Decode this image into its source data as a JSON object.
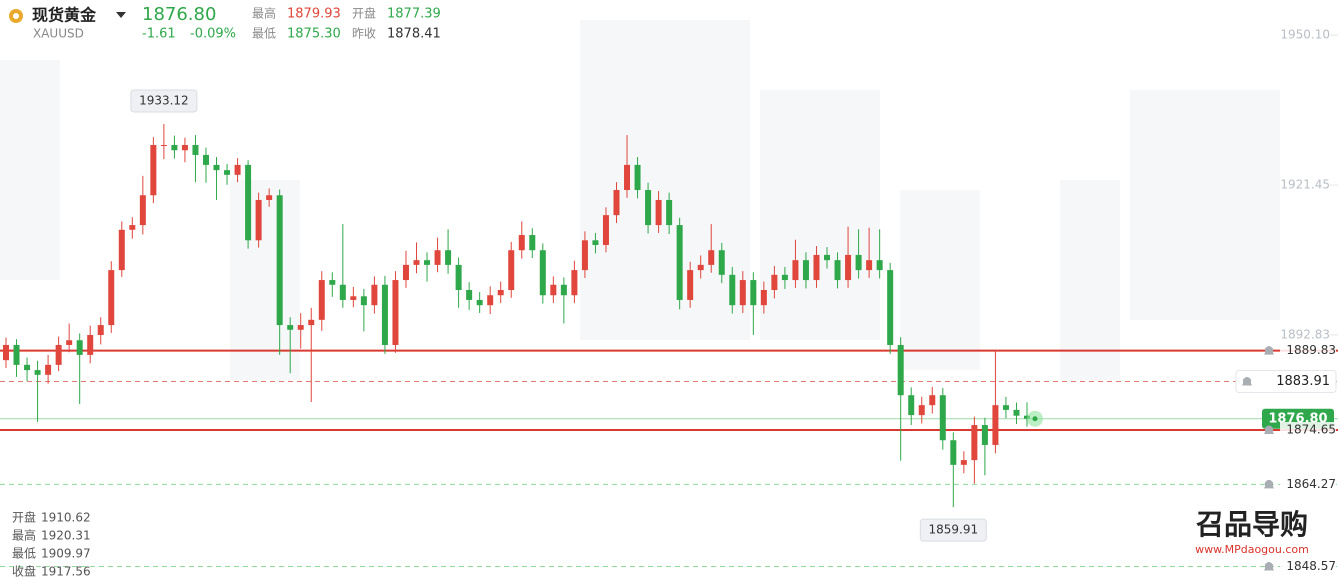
{
  "header": {
    "name": "现货黄金",
    "symbol": "XAUUSD",
    "price": "1876.80",
    "change": "-1.61",
    "change_percent": "-0.09%",
    "stats": [
      {
        "label": "最高",
        "value": "1879.93",
        "color": "#e0463c"
      },
      {
        "label": "开盘",
        "value": "1877.39",
        "color": "#2ea84a"
      },
      {
        "label": "最低",
        "value": "1875.30",
        "color": "#2ea84a"
      },
      {
        "label": "昨收",
        "value": "1878.41",
        "color": "#333333"
      }
    ]
  },
  "info_box": [
    {
      "label": "开盘",
      "value": "1910.62"
    },
    {
      "label": "最高",
      "value": "1920.31"
    },
    {
      "label": "最低",
      "value": "1909.97"
    },
    {
      "label": "收盘",
      "value": "1917.56"
    }
  ],
  "watermark": {
    "brand": "召品导购",
    "url": "www.MPdaogou.com"
  },
  "chart_data": {
    "type": "candlestick",
    "up_color": "#e0463c",
    "down_color": "#2ea84a",
    "ylim": [
      1846.0,
      1956.8
    ],
    "yticks": [
      {
        "value": 1950.1,
        "label": "1950.10"
      },
      {
        "value": 1921.45,
        "label": "1921.45"
      },
      {
        "value": 1892.83,
        "label": "1892.83"
      }
    ],
    "open": [
      1888.0,
      1890.9,
      1887.1,
      1886.1,
      1885.2,
      1887.1,
      1890.9,
      1891.8,
      1889.0,
      1892.8,
      1894.7,
      1905.2,
      1912.9,
      1913.8,
      1919.5,
      1929.1,
      1929.1,
      1928.1,
      1929.1,
      1927.2,
      1925.3,
      1924.3,
      1923.4,
      1925.3,
      1910.9,
      1918.6,
      1919.5,
      1894.7,
      1893.8,
      1894.7,
      1895.7,
      1903.3,
      1902.4,
      1899.5,
      1900.2,
      1898.5,
      1902.4,
      1890.9,
      1903.3,
      1906.2,
      1907.1,
      1906.2,
      1909.0,
      1906.2,
      1901.4,
      1899.5,
      1898.5,
      1900.4,
      1901.4,
      1909.0,
      1911.9,
      1909.0,
      1900.4,
      1902.4,
      1900.4,
      1905.2,
      1910.9,
      1910.0,
      1915.7,
      1920.5,
      1925.3,
      1920.5,
      1913.8,
      1918.6,
      1913.8,
      1899.5,
      1905.2,
      1906.2,
      1909.0,
      1904.3,
      1898.5,
      1903.3,
      1898.5,
      1901.4,
      1904.3,
      1903.3,
      1907.1,
      1903.3,
      1908.1,
      1907.1,
      1903.3,
      1908.1,
      1905.2,
      1907.1,
      1905.2,
      1890.9,
      1881.3,
      1877.5,
      1879.4,
      1881.3,
      1872.7,
      1868.0,
      1868.9,
      1875.6,
      1871.8,
      1879.4,
      1878.5,
      1877.39
    ],
    "high": [
      1892.3,
      1892.0,
      1888.5,
      1887.9,
      1889.0,
      1892.5,
      1895.0,
      1893.1,
      1894.6,
      1896.2,
      1906.9,
      1914.5,
      1915.3,
      1923.2,
      1930.6,
      1933.12,
      1930.9,
      1930.5,
      1931.0,
      1928.6,
      1926.8,
      1925.5,
      1926.6,
      1926.2,
      1920.0,
      1920.8,
      1920.6,
      1896.2,
      1897.0,
      1898.0,
      1905.0,
      1904.8,
      1914.0,
      1902.0,
      1901.6,
      1904.0,
      1904.1,
      1905.0,
      1908.9,
      1910.5,
      1908.6,
      1911.4,
      1913.0,
      1907.6,
      1902.9,
      1901.0,
      1902.1,
      1903.0,
      1910.6,
      1914.5,
      1913.2,
      1910.3,
      1904.0,
      1903.8,
      1907.0,
      1912.6,
      1912.3,
      1917.2,
      1922.0,
      1931.0,
      1926.8,
      1921.9,
      1920.3,
      1920.0,
      1915.2,
      1906.8,
      1908.0,
      1914.0,
      1910.4,
      1905.8,
      1905.0,
      1904.8,
      1903.0,
      1906.0,
      1905.8,
      1911.0,
      1908.6,
      1909.8,
      1909.6,
      1908.6,
      1913.5,
      1913.0,
      1913.3,
      1913.0,
      1906.6,
      1892.4,
      1882.8,
      1881.0,
      1882.9,
      1882.7,
      1874.2,
      1870.6,
      1877.2,
      1877.0,
      1889.83,
      1881.0,
      1879.9,
      1879.93
    ],
    "low": [
      1886.5,
      1884.8,
      1884.0,
      1876.2,
      1883.5,
      1885.9,
      1889.5,
      1879.6,
      1887.4,
      1891.0,
      1893.2,
      1903.9,
      1911.2,
      1912.0,
      1918.0,
      1926.4,
      1926.5,
      1925.8,
      1922.0,
      1921.9,
      1918.6,
      1921.5,
      1922.0,
      1909.3,
      1909.5,
      1917.3,
      1889.0,
      1885.5,
      1890.2,
      1880.0,
      1893.6,
      1900.1,
      1898.0,
      1898.1,
      1893.5,
      1896.9,
      1889.2,
      1889.4,
      1901.8,
      1904.6,
      1903.0,
      1904.8,
      1904.5,
      1898.0,
      1897.6,
      1897.0,
      1896.8,
      1898.9,
      1899.9,
      1907.4,
      1907.5,
      1898.8,
      1898.9,
      1895.0,
      1898.9,
      1903.7,
      1908.4,
      1908.6,
      1914.2,
      1919.0,
      1918.9,
      1912.2,
      1912.3,
      1912.1,
      1897.7,
      1898.0,
      1903.6,
      1904.7,
      1902.7,
      1896.9,
      1897.0,
      1892.8,
      1896.9,
      1899.8,
      1901.6,
      1901.8,
      1901.7,
      1901.8,
      1905.5,
      1901.7,
      1901.8,
      1903.6,
      1903.7,
      1903.6,
      1889.2,
      1868.8,
      1875.6,
      1875.9,
      1877.8,
      1870.9,
      1859.91,
      1866.4,
      1864.4,
      1866.0,
      1870.2,
      1876.9,
      1875.8,
      1875.3
    ],
    "close": [
      1890.9,
      1887.1,
      1886.1,
      1885.2,
      1887.1,
      1890.9,
      1891.8,
      1889.0,
      1892.8,
      1894.7,
      1905.2,
      1912.9,
      1913.8,
      1919.5,
      1929.1,
      1929.1,
      1928.1,
      1929.1,
      1927.2,
      1925.3,
      1924.3,
      1923.4,
      1925.3,
      1910.9,
      1918.6,
      1919.5,
      1894.7,
      1893.8,
      1894.7,
      1895.7,
      1903.3,
      1902.4,
      1899.5,
      1900.2,
      1898.5,
      1902.4,
      1890.9,
      1903.3,
      1906.2,
      1907.1,
      1906.2,
      1909.0,
      1906.2,
      1901.4,
      1899.5,
      1898.5,
      1900.4,
      1901.4,
      1909.0,
      1911.9,
      1909.0,
      1900.4,
      1902.4,
      1900.4,
      1905.2,
      1910.9,
      1910.0,
      1915.7,
      1920.5,
      1925.3,
      1920.5,
      1913.8,
      1918.6,
      1913.8,
      1899.5,
      1905.2,
      1906.2,
      1909.0,
      1904.3,
      1898.5,
      1903.3,
      1898.5,
      1901.4,
      1904.3,
      1903.3,
      1907.1,
      1903.3,
      1908.1,
      1907.1,
      1903.3,
      1908.1,
      1905.2,
      1907.1,
      1905.2,
      1890.9,
      1881.3,
      1877.5,
      1879.4,
      1881.3,
      1872.7,
      1868.0,
      1868.9,
      1875.6,
      1871.8,
      1879.4,
      1878.5,
      1877.39,
      1876.8
    ],
    "annotations": [
      {
        "value": 1933.12,
        "label": "1933.12",
        "side": "above"
      },
      {
        "value": 1859.91,
        "label": "1859.91",
        "side": "below"
      }
    ],
    "levels": [
      {
        "value": 1889.83,
        "label": "1889.83",
        "color": "#d93a2f",
        "line": "solid",
        "badge": "plain"
      },
      {
        "value": 1883.91,
        "label": "1883.91",
        "color": "#e07a72",
        "line": "dashed",
        "badge": "box"
      },
      {
        "value": 1876.8,
        "label": "1876.80",
        "color": "#9fd9ab",
        "line": "solid",
        "badge": "filled"
      },
      {
        "value": 1874.65,
        "label": "1874.65",
        "color": "#d93a2f",
        "line": "solid",
        "badge": "plain"
      },
      {
        "value": 1864.27,
        "label": "1864.27",
        "color": "#8fdc9c",
        "line": "dashed",
        "badge": "plain"
      },
      {
        "value": 1848.57,
        "label": "1848.57",
        "color": "#8fdc9c",
        "line": "dashed",
        "badge": "plain"
      }
    ]
  }
}
